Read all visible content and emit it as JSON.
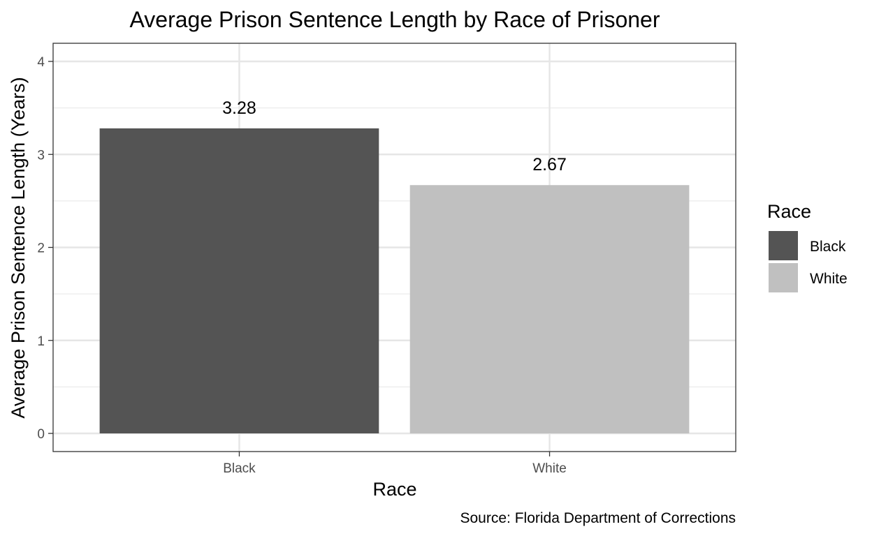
{
  "chart_data": {
    "type": "bar",
    "title": "Average Prison Sentence Length by Race of Prisoner",
    "xlabel": "Race",
    "ylabel": "Average Prison Sentence Length (Years)",
    "categories": [
      "Black",
      "White"
    ],
    "values": [
      3.28,
      2.67
    ],
    "data_labels": [
      "3.28",
      "2.67"
    ],
    "colors": [
      "#545454",
      "#c0c0c0"
    ],
    "ylim": [
      0,
      4.2
    ],
    "y_ticks": [
      0,
      1,
      2,
      3,
      4
    ],
    "y_tick_labels": [
      "0",
      "1",
      "2",
      "3",
      "4"
    ],
    "grid": true,
    "legend": {
      "title": "Race",
      "position": "right",
      "items": [
        "Black",
        "White"
      ]
    },
    "caption": "Source: Florida Department of Corrections"
  }
}
